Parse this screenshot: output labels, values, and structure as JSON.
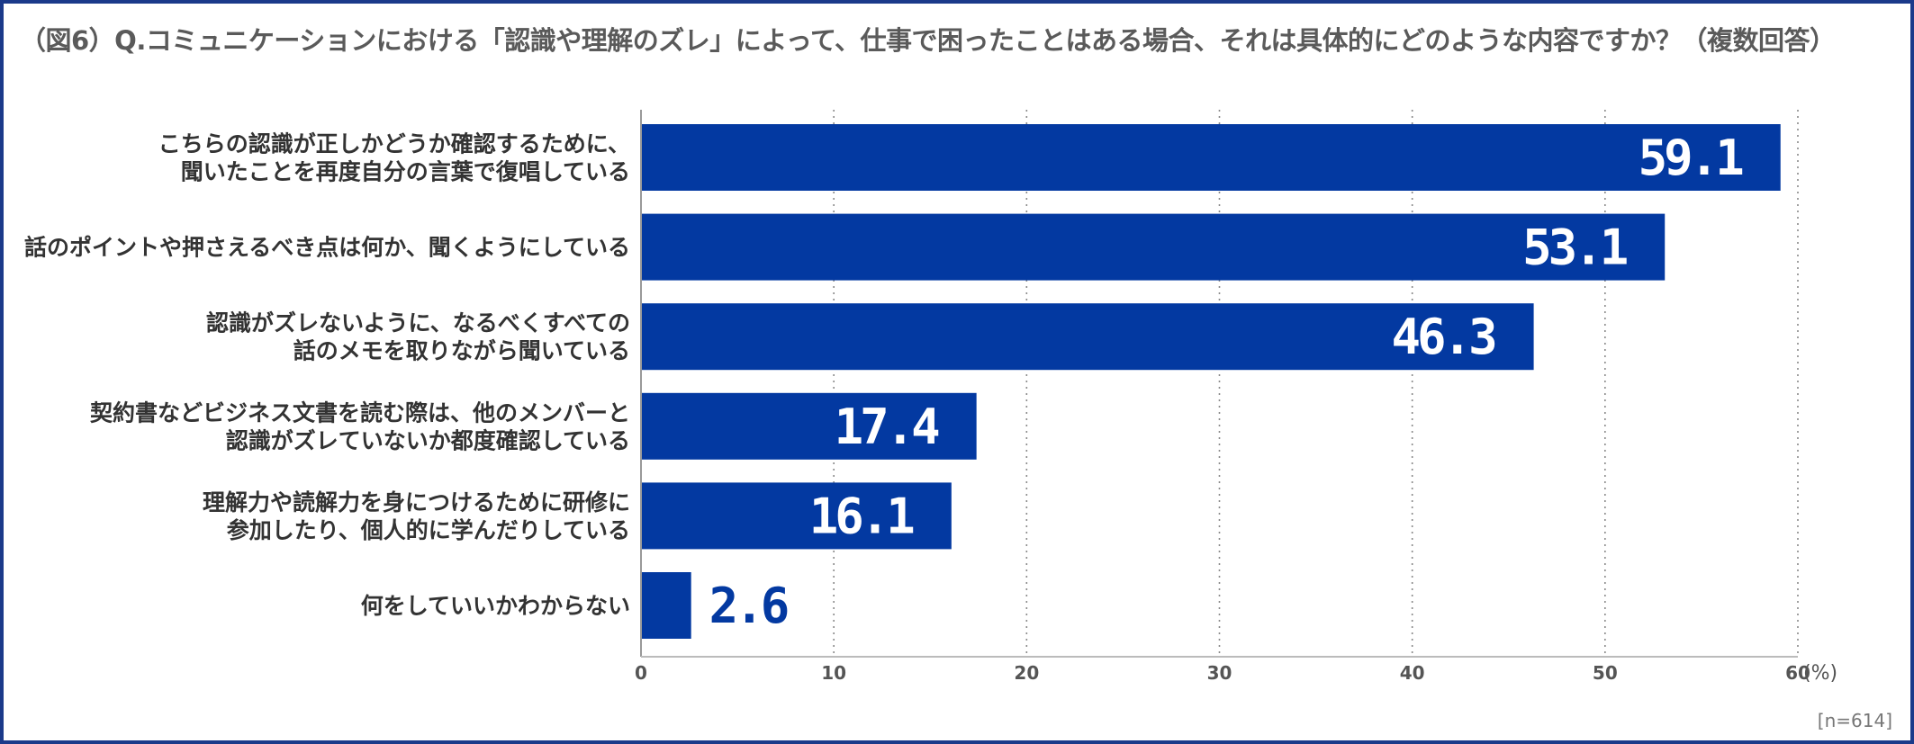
{
  "title": "（図6）Q.コミュニケーションにおける「認識や理解のズレ」によって、仕事で困ったことはある場合、それは具体的にどのような内容ですか？（複数回答）",
  "sample_note": "[n=614]",
  "colors": {
    "bar": "#0339a1",
    "frame": "#1b3a8a",
    "value_inside": "#ffffff",
    "value_outside": "#0339a1"
  },
  "chart_data": {
    "type": "bar",
    "orientation": "horizontal",
    "categories": [
      [
        "こちらの認識が正しかどうか確認するために、",
        "聞いたことを再度自分の言葉で復唱している"
      ],
      [
        "話のポイントや押さえるべき点は何か、聞くようにしている"
      ],
      [
        "認識がズレないように、なるべくすべての",
        "話のメモを取りながら聞いている"
      ],
      [
        "契約書などビジネス文書を読む際は、他のメンバーと",
        "認識がズレていないか都度確認している"
      ],
      [
        "理解力や読解力を身につけるために研修に",
        "参加したり、個人的に学んだりしている"
      ],
      [
        "何をしていいかわからない"
      ]
    ],
    "values": [
      59.1,
      53.1,
      46.3,
      17.4,
      16.1,
      2.6
    ],
    "value_labels": [
      "59.1",
      "53.1",
      "46.3",
      "17.4",
      "16.1",
      "2.6"
    ],
    "xlim": [
      0,
      60
    ],
    "xticks": [
      0,
      10,
      20,
      30,
      40,
      50,
      60
    ],
    "xtick_labels": [
      "0",
      "10",
      "20",
      "30",
      "40",
      "50",
      "60"
    ],
    "unit": "(%)",
    "grid": "vertical-dotted",
    "legend": "none"
  }
}
